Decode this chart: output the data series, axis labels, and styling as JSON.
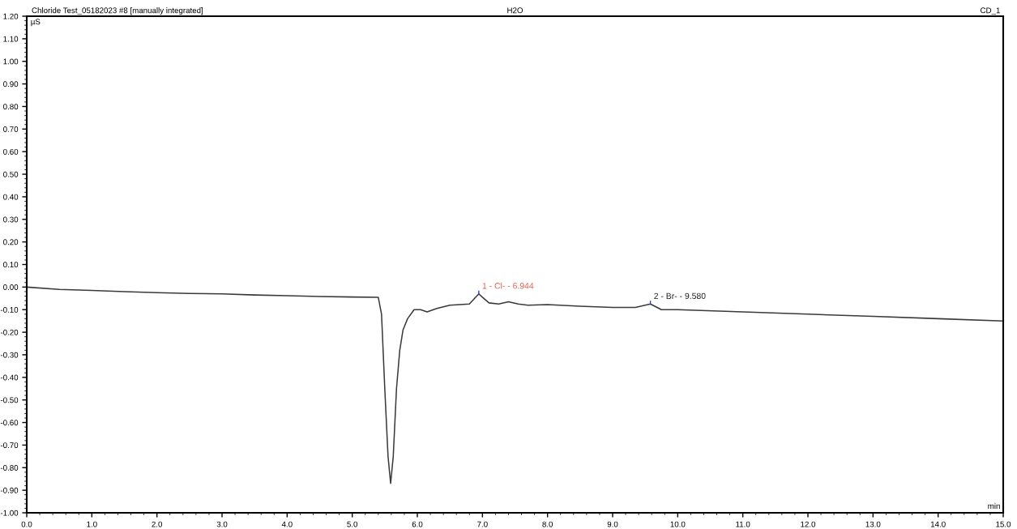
{
  "chart_data": {
    "type": "line",
    "title": "Chloride Test_05182023 #8 [manually integrated]",
    "subtitle": "H2O",
    "ylabel": "µS",
    "xlabel": "min",
    "annotations": [
      "CD_1",
      {
        "text": "1 - Cl- - 6.944",
        "x": 6.944,
        "y": -0.03
      },
      {
        "text": "2 - Br- - 9.580",
        "x": 9.58,
        "y": -0.075
      }
    ],
    "series": [
      {
        "color": "#3a3a3a",
        "x": [
          0,
          0.5,
          1.0,
          1.5,
          2.0,
          2.5,
          3.0,
          3.5,
          4.0,
          4.5,
          5.0,
          5.4,
          5.45,
          5.5,
          5.55,
          5.59,
          5.63,
          5.68,
          5.73,
          5.78,
          5.85,
          5.95,
          6.05,
          6.15,
          6.3,
          6.5,
          6.8,
          6.88,
          6.944,
          7.0,
          7.1,
          7.25,
          7.4,
          7.55,
          7.7,
          8.0,
          8.5,
          9.0,
          9.35,
          9.58,
          9.75,
          10.0,
          11.0,
          12.0,
          13.0,
          14.0,
          15.0
        ],
        "values": [
          0,
          -0.01,
          -0.015,
          -0.02,
          -0.025,
          -0.028,
          -0.03,
          -0.035,
          -0.038,
          -0.042,
          -0.044,
          -0.045,
          -0.12,
          -0.45,
          -0.75,
          -0.87,
          -0.75,
          -0.45,
          -0.28,
          -0.19,
          -0.14,
          -0.1,
          -0.1,
          -0.11,
          -0.095,
          -0.08,
          -0.075,
          -0.05,
          -0.03,
          -0.045,
          -0.07,
          -0.075,
          -0.065,
          -0.075,
          -0.08,
          -0.078,
          -0.085,
          -0.09,
          -0.09,
          -0.075,
          -0.1,
          -0.1,
          -0.11,
          -0.12,
          -0.13,
          -0.14,
          -0.15
        ]
      }
    ],
    "xlim": [
      0,
      15
    ],
    "xticks": [
      {
        "value": 0,
        "label": "0.0"
      },
      {
        "value": 1,
        "label": "1.0"
      },
      {
        "value": 2,
        "label": "2.0"
      },
      {
        "value": 3,
        "label": "3.0"
      },
      {
        "value": 4,
        "label": "4.0"
      },
      {
        "value": 5,
        "label": "5.0"
      },
      {
        "value": 6,
        "label": "6.0"
      },
      {
        "value": 7,
        "label": "7.0"
      },
      {
        "value": 8,
        "label": "8.0"
      },
      {
        "value": 9,
        "label": "9.0"
      },
      {
        "value": 10,
        "label": "10.0"
      },
      {
        "value": 11,
        "label": "11.0"
      },
      {
        "value": 12,
        "label": "12.0"
      },
      {
        "value": 13,
        "label": "13.0"
      },
      {
        "value": 14,
        "label": "14.0"
      },
      {
        "value": 15,
        "label": "15.0"
      }
    ],
    "ylim": [
      -1.0,
      1.2
    ],
    "yticks": [
      {
        "value": -1.0,
        "label": "-1.00"
      },
      {
        "value": -0.9,
        "label": "-0.90"
      },
      {
        "value": -0.8,
        "label": "-0.80"
      },
      {
        "value": -0.7,
        "label": "-0.70"
      },
      {
        "value": -0.6,
        "label": "-0.60"
      },
      {
        "value": -0.5,
        "label": "-0.50"
      },
      {
        "value": -0.4,
        "label": "-0.40"
      },
      {
        "value": -0.3,
        "label": "-0.30"
      },
      {
        "value": -0.2,
        "label": "-0.20"
      },
      {
        "value": -0.1,
        "label": "-0.10"
      },
      {
        "value": 0.0,
        "label": "0.00"
      },
      {
        "value": 0.1,
        "label": "0.10"
      },
      {
        "value": 0.2,
        "label": "0.20"
      },
      {
        "value": 0.3,
        "label": "0.30"
      },
      {
        "value": 0.4,
        "label": "0.40"
      },
      {
        "value": 0.5,
        "label": "0.50"
      },
      {
        "value": 0.6,
        "label": "0.60"
      },
      {
        "value": 0.7,
        "label": "0.70"
      },
      {
        "value": 0.8,
        "label": "0.80"
      },
      {
        "value": 0.9,
        "label": "0.90"
      },
      {
        "value": 1.0,
        "label": "1.00"
      },
      {
        "value": 1.1,
        "label": "1.10"
      },
      {
        "value": 1.2,
        "label": "1.20"
      }
    ],
    "grid": false,
    "marker": "none",
    "line_style": "solid"
  }
}
